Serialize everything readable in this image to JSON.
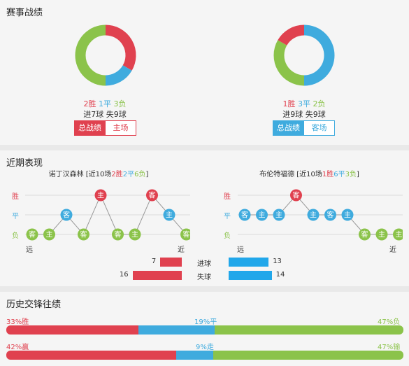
{
  "record": {
    "title": "赛事战绩",
    "home": {
      "win": "2胜",
      "draw": "1平",
      "loss": "3负",
      "goals": "进7球",
      "conceded": "失9球",
      "tab_active": "总战绩",
      "tab_other": "主场",
      "donut": [
        {
          "value": 2,
          "color": "#e0414f"
        },
        {
          "value": 1,
          "color": "#3fabde"
        },
        {
          "value": 3,
          "color": "#8bc34a"
        }
      ]
    },
    "away": {
      "win": "1胜",
      "draw": "3平",
      "loss": "2负",
      "goals": "进9球",
      "conceded": "失9球",
      "tab_active": "总战绩",
      "tab_other": "客场",
      "donut": [
        {
          "value": 3,
          "color": "#3fabde"
        },
        {
          "value": 2,
          "color": "#8bc34a"
        },
        {
          "value": 1,
          "color": "#e0414f"
        }
      ]
    }
  },
  "recent": {
    "title": "近期表现",
    "axis": {
      "win": "胜",
      "draw": "平",
      "loss": "负",
      "far": "远",
      "near": "近"
    },
    "home": {
      "team": "诺丁汉森林",
      "summary_pre": " [近10场",
      "w": "2胜",
      "d": "2平",
      "l": "6负",
      "summary_post": "]",
      "games": [
        {
          "venue": "客",
          "result": "L"
        },
        {
          "venue": "主",
          "result": "L"
        },
        {
          "venue": "客",
          "result": "D"
        },
        {
          "venue": "客",
          "result": "L"
        },
        {
          "venue": "主",
          "result": "W"
        },
        {
          "venue": "客",
          "result": "L"
        },
        {
          "venue": "主",
          "result": "L"
        },
        {
          "venue": "客",
          "result": "W"
        },
        {
          "venue": "主",
          "result": "D"
        },
        {
          "venue": "客",
          "result": "L"
        }
      ]
    },
    "away": {
      "team": "布伦特福德",
      "summary_pre": " [近10场",
      "w": "1胜",
      "d": "6平",
      "l": "3负",
      "summary_post": "]",
      "games": [
        {
          "venue": "客",
          "result": "D"
        },
        {
          "venue": "主",
          "result": "D"
        },
        {
          "venue": "主",
          "result": "D"
        },
        {
          "venue": "客",
          "result": "W"
        },
        {
          "venue": "主",
          "result": "D"
        },
        {
          "venue": "客",
          "result": "D"
        },
        {
          "venue": "主",
          "result": "D"
        },
        {
          "venue": "客",
          "result": "L"
        },
        {
          "venue": "主",
          "result": "L"
        },
        {
          "venue": "主",
          "result": "L"
        }
      ]
    },
    "goals": {
      "label": "进球",
      "home": 7,
      "away": 13
    },
    "conceded": {
      "label": "失球",
      "home": 16,
      "away": 14
    },
    "colors": {
      "W": "#e0414f",
      "D": "#3fabde",
      "L": "#8bc34a"
    }
  },
  "history": {
    "title": "历史交锋往绩",
    "row1": {
      "left": "33%胜",
      "mid": "19%平",
      "right": "47%负",
      "a": 33,
      "b": 19,
      "c": 47
    },
    "row2": {
      "left": "42%赢",
      "mid": "9%走",
      "right": "47%输",
      "a": 42,
      "b": 9,
      "c": 47
    }
  }
}
